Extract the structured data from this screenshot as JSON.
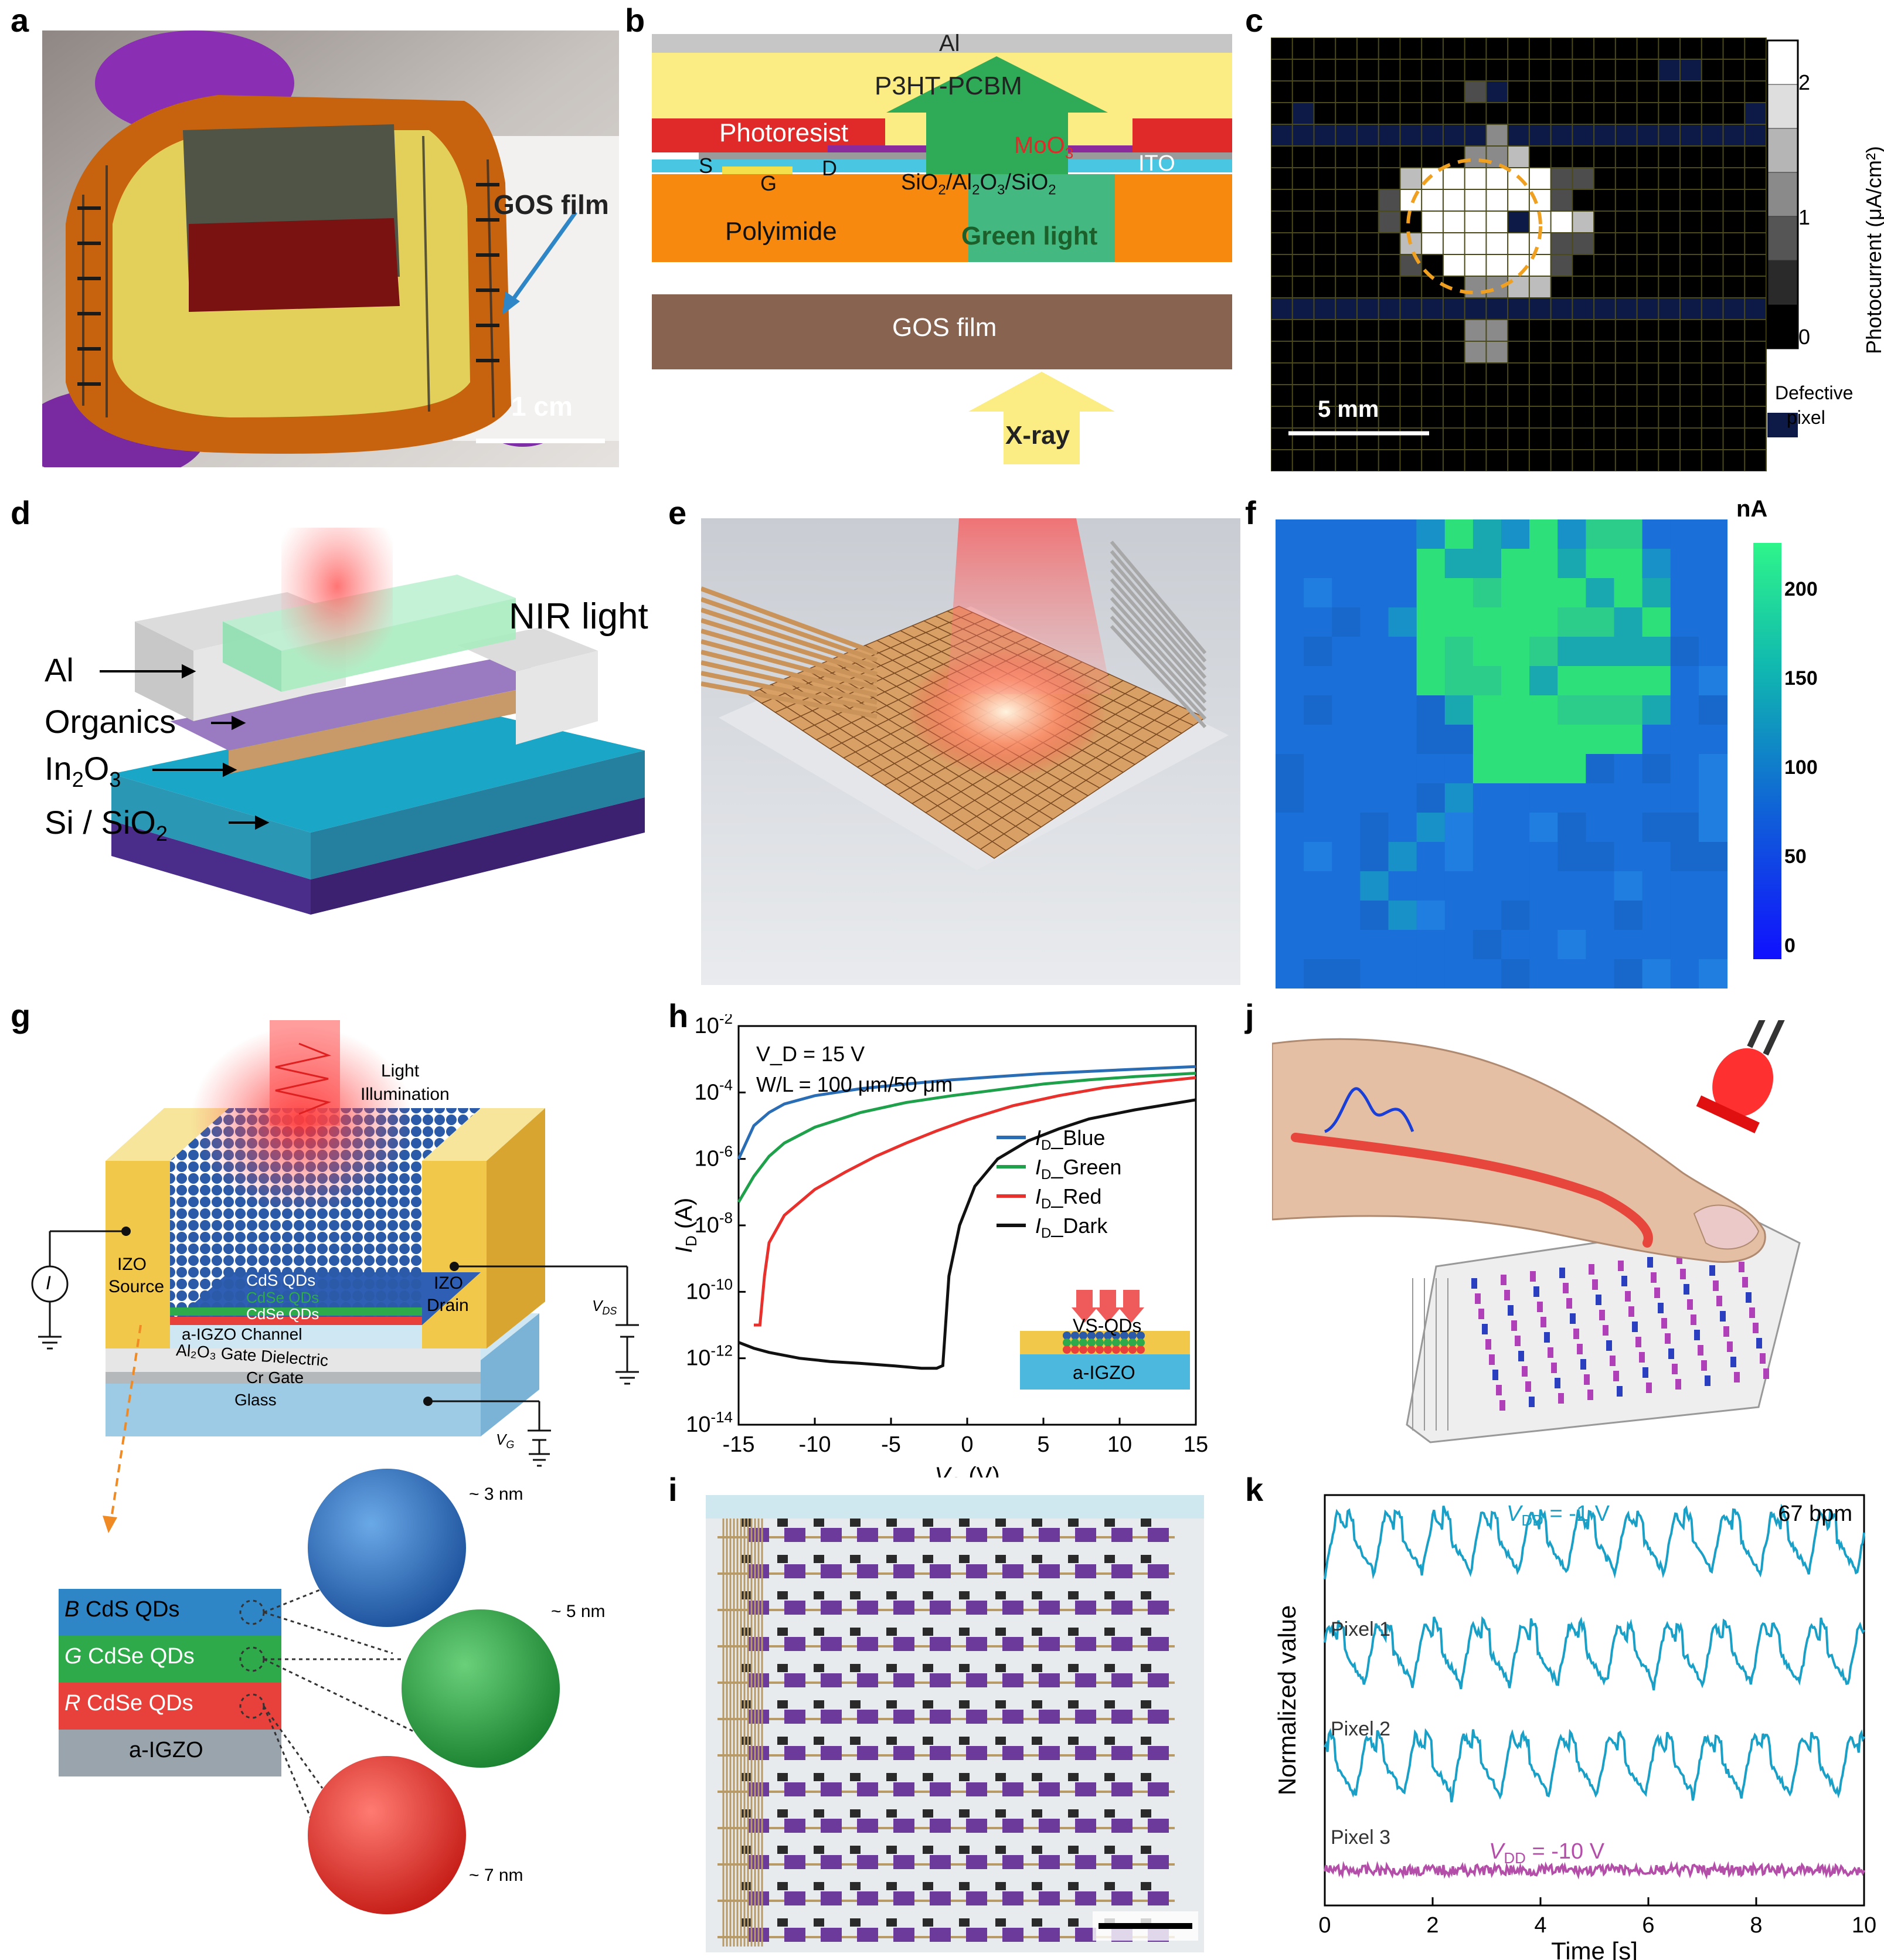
{
  "panel_letters": {
    "a": "a",
    "b": "b",
    "c": "c",
    "d": "d",
    "e": "e",
    "f": "f",
    "g": "g",
    "h": "h",
    "i": "i",
    "j": "j",
    "k": "k"
  },
  "panel_a": {
    "film_label": "GOS film",
    "scale_label": "1 cm"
  },
  "panel_b": {
    "al": "Al",
    "p3ht": "P3HT-PCBM",
    "photoresist": "Photoresist",
    "moo3": "MoO",
    "moo3_sub": "3",
    "ito": "ITO",
    "s": "S",
    "d": "D",
    "g": "G",
    "dielectric_parts": [
      "SiO",
      "2",
      "/Al",
      "2",
      "O",
      "3",
      "/SiO",
      "2"
    ],
    "polyimide": "Polyimide",
    "green_light": "Green light",
    "gos_film": "GOS film",
    "xray": "X-ray"
  },
  "panel_c": {
    "colorbar_ticks": [
      "2",
      "1",
      "0"
    ],
    "colorbar_label": "Photocurrent (μA/cm²)",
    "scale_label": "5 mm",
    "legend_label": [
      "Defective",
      "pixel"
    ]
  },
  "panel_d": {
    "al": "Al",
    "organics": "Organics",
    "in2o3": "In",
    "in2o3_sub": "2",
    "in2o3_o": "O",
    "in2o3_o_sub": "3",
    "sisio2": "Si / SiO",
    "sisio2_sub": "2",
    "nir": "NIR light"
  },
  "panel_f": {
    "unit": "nA",
    "colorbar_ticks": [
      "200",
      "150",
      "100",
      "50",
      "0"
    ]
  },
  "panel_g": {
    "light": "Light",
    "illumination": "Illumination",
    "izo_source": [
      "IZO",
      "Source"
    ],
    "izo_drain": [
      "IZO",
      "Drain"
    ],
    "cds": "CdS QDs",
    "cdse1": "CdSe QDs",
    "cdse2": "CdSe QDs",
    "channel": "a-IGZO Channel",
    "dielectric": "Al₂O₃ Gate Dielectric",
    "gate": "Cr Gate",
    "glass": "Glass",
    "i_symbol": "I",
    "vds": "V",
    "vds_sub": "DS",
    "vg": "V",
    "vg_sub": "G",
    "layers": [
      {
        "letter": "B",
        "text": "CdS QDs",
        "color": "#2f86c7"
      },
      {
        "letter": "G",
        "text": "CdSe QDs",
        "color": "#2eaa4a"
      },
      {
        "letter": "R",
        "text": "CdSe QDs",
        "color": "#e8413c"
      },
      {
        "letter": "",
        "text": "a-IGZO",
        "color": "#9aa4ad"
      }
    ],
    "sizes": [
      "~ 3 nm",
      "~ 5 nm",
      "~ 7 nm"
    ]
  },
  "chart_data": {
    "type": "line",
    "title": "",
    "xlabel": "V_G (V)",
    "ylabel": "I_D (A)",
    "xlim": [
      -15,
      15
    ],
    "ylim": [
      1e-14,
      0.01
    ],
    "yscale": "log",
    "x_ticks": [
      "-15",
      "-10",
      "-5",
      "0",
      "5",
      "10",
      "15"
    ],
    "y_ticks": [
      "10^-2",
      "10^-4",
      "10^-6",
      "10^-8",
      "10^-10",
      "10^-12",
      "10^-14"
    ],
    "annotations": [
      "V_D = 15 V",
      "W/L = 100 μm/50 μm"
    ],
    "inset_labels": [
      "VS-QDs",
      "a-IGZO"
    ],
    "series": [
      {
        "name": "I_D_Blue",
        "color": "#2a6db5",
        "x": [
          -15,
          -14,
          -13,
          -12,
          -10,
          -7,
          -4,
          -1,
          2,
          5,
          8,
          11,
          15
        ],
        "y": [
          1e-06,
          1e-05,
          2.5e-05,
          4.5e-05,
          8e-05,
          0.00013,
          0.00018,
          0.00024,
          0.0003,
          0.00037,
          0.00043,
          0.0005,
          0.0006
        ]
      },
      {
        "name": "I_D_Green",
        "color": "#1fa04a",
        "x": [
          -15,
          -14,
          -13,
          -12,
          -10,
          -7,
          -4,
          -1,
          2,
          5,
          8,
          11,
          15
        ],
        "y": [
          5e-08,
          3e-07,
          1.2e-06,
          3e-06,
          9e-06,
          2.5e-05,
          5e-05,
          8e-05,
          0.00012,
          0.00018,
          0.00024,
          0.0003,
          0.00038
        ]
      },
      {
        "name": "I_D_Red",
        "color": "#e8302c",
        "x": [
          -14,
          -13.6,
          -13.3,
          -13,
          -12,
          -10,
          -8,
          -6,
          -4,
          -2,
          0,
          3,
          6,
          9,
          12,
          15
        ],
        "y": [
          1e-11,
          1e-11,
          3e-10,
          3e-09,
          2e-08,
          1.2e-07,
          4e-07,
          1.2e-06,
          3e-06,
          7e-06,
          1.5e-05,
          4e-05,
          8e-05,
          0.00014,
          0.0002,
          0.00028
        ]
      },
      {
        "name": "I_D_Dark",
        "color": "#111111",
        "x": [
          -15,
          -14,
          -13,
          -11,
          -9,
          -7,
          -5,
          -3,
          -2,
          -1.6,
          -1.2,
          -0.5,
          0.5,
          2,
          4,
          6,
          8,
          11,
          15
        ],
        "y": [
          3e-12,
          2e-12,
          1.5e-12,
          1e-12,
          8e-13,
          7e-13,
          6e-13,
          5e-13,
          5e-13,
          6e-13,
          3e-10,
          1e-08,
          1.5e-07,
          1e-06,
          3.5e-06,
          8e-06,
          1.6e-05,
          3e-05,
          6e-05
        ]
      }
    ]
  },
  "panel_k": {
    "top_label": "V",
    "top_label_sub": "DD",
    "top_label_rest": " = -1 V",
    "bpm": "67 bpm",
    "bottom_label": "V",
    "bottom_label_sub": "DD",
    "bottom_label_rest": " = -10 V",
    "pixels": [
      "Pixel 1",
      "Pixel 2",
      "Pixel 3"
    ],
    "xlabel": "Time [s]",
    "ylabel": "Normalized value",
    "x_ticks": [
      "0",
      "2",
      "4",
      "6",
      "8",
      "10"
    ]
  }
}
